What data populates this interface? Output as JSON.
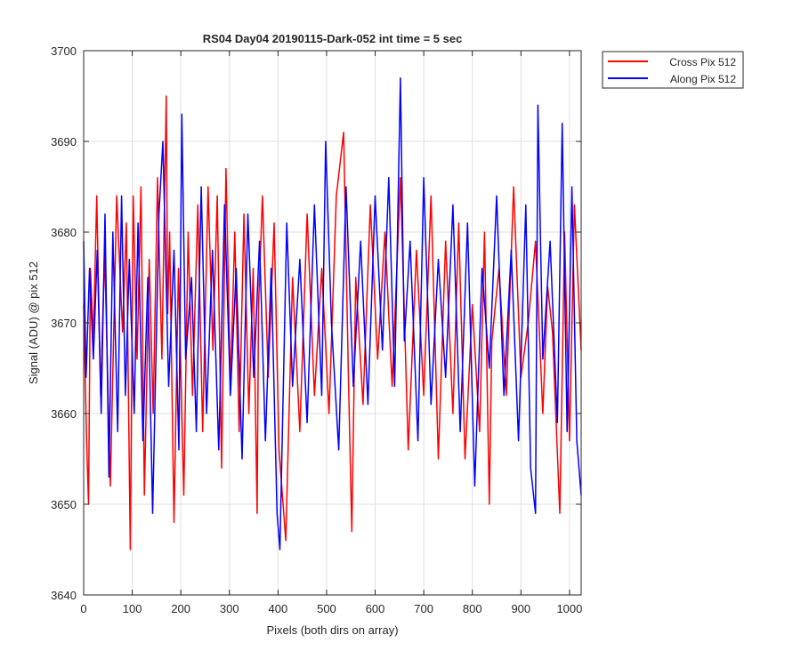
{
  "chart_data": {
    "type": "line",
    "title": "RS04 Day04 20190115-Dark-052 int time = 5 sec",
    "xlabel": "Pixels (both dirs on array)",
    "ylabel": "Signal (ADU) @ pix 512",
    "xlim": [
      0,
      1024
    ],
    "ylim": [
      3640,
      3700
    ],
    "xticks": [
      0,
      100,
      200,
      300,
      400,
      500,
      600,
      700,
      800,
      900,
      1000
    ],
    "yticks": [
      3640,
      3650,
      3660,
      3670,
      3680,
      3690,
      3700
    ],
    "grid": true,
    "legend_position": "outside-top-right",
    "series": [
      {
        "name": "Cross Pix 512",
        "color": "#ff0000",
        "x": [
          0,
          6,
          10,
          14,
          20,
          27,
          35,
          43,
          55,
          68,
          80,
          88,
          96,
          102,
          110,
          118,
          125,
          135,
          143,
          152,
          161,
          170,
          173,
          177,
          186,
          195,
          206,
          215,
          224,
          235,
          245,
          256,
          266,
          275,
          284,
          293,
          302,
          311,
          320,
          330,
          340,
          349,
          357,
          360,
          368,
          380,
          392,
          402,
          416,
          430,
          445,
          460,
          475,
          490,
          505,
          520,
          535,
          545,
          552,
          560,
          575,
          590,
          605,
          620,
          635,
          652,
          668,
          685,
          700,
          715,
          730,
          745,
          760,
          772,
          785,
          800,
          815,
          825,
          835,
          840,
          855,
          870,
          885,
          900,
          915,
          930,
          945,
          955,
          965,
          980,
          990,
          1000,
          1010,
          1024
        ],
        "values": [
          3672,
          3657,
          3650,
          3676,
          3668,
          3684,
          3662,
          3678,
          3652,
          3684,
          3669,
          3681,
          3645,
          3684,
          3666,
          3685,
          3651,
          3677,
          3660,
          3686,
          3666,
          3695,
          3671,
          3680,
          3648,
          3676,
          3651,
          3680,
          3662,
          3683,
          3658,
          3685,
          3667,
          3684,
          3654,
          3687,
          3663,
          3680,
          3658,
          3682,
          3660,
          3676,
          3649,
          3672,
          3684,
          3664,
          3681,
          3656,
          3646,
          3675,
          3658,
          3682,
          3662,
          3676,
          3660,
          3684,
          3691,
          3664,
          3647,
          3675,
          3661,
          3683,
          3666,
          3680,
          3663,
          3686,
          3656,
          3678,
          3662,
          3684,
          3655,
          3679,
          3660,
          3681,
          3655,
          3672,
          3658,
          3680,
          3650,
          3668,
          3676,
          3662,
          3685,
          3664,
          3670,
          3679,
          3660,
          3674,
          3669,
          3649,
          3680,
          3657,
          3683,
          3667
        ]
      },
      {
        "name": "Along Pix 512",
        "color": "#0000ff",
        "x": [
          0,
          5,
          12,
          20,
          28,
          36,
          44,
          52,
          60,
          70,
          78,
          86,
          94,
          104,
          112,
          122,
          132,
          142,
          155,
          163,
          175,
          186,
          196,
          202,
          210,
          222,
          232,
          242,
          253,
          265,
          278,
          290,
          302,
          314,
          326,
          338,
          350,
          362,
          374,
          386,
          398,
          404,
          418,
          430,
          445,
          460,
          475,
          490,
          498,
          510,
          525,
          540,
          555,
          570,
          585,
          600,
          615,
          628,
          640,
          652,
          660,
          672,
          688,
          700,
          715,
          730,
          745,
          760,
          775,
          790,
          805,
          820,
          835,
          850,
          865,
          880,
          895,
          910,
          920,
          930,
          935,
          945,
          960,
          975,
          985,
          995,
          1005,
          1015,
          1024
        ],
        "values": [
          3679,
          3664,
          3676,
          3666,
          3678,
          3660,
          3682,
          3653,
          3680,
          3658,
          3684,
          3662,
          3677,
          3660,
          3681,
          3657,
          3675,
          3649,
          3682,
          3690,
          3663,
          3678,
          3656,
          3693,
          3666,
          3675,
          3658,
          3685,
          3660,
          3678,
          3656,
          3683,
          3662,
          3676,
          3655,
          3682,
          3664,
          3679,
          3657,
          3676,
          3649,
          3645,
          3681,
          3663,
          3677,
          3659,
          3683,
          3662,
          3690,
          3670,
          3656,
          3685,
          3663,
          3679,
          3661,
          3684,
          3667,
          3686,
          3663,
          3697,
          3668,
          3679,
          3657,
          3686,
          3661,
          3677,
          3664,
          3683,
          3658,
          3681,
          3652,
          3676,
          3665,
          3684,
          3662,
          3678,
          3657,
          3683,
          3654,
          3649,
          3694,
          3666,
          3679,
          3659,
          3692,
          3658,
          3685,
          3657,
          3651
        ]
      }
    ]
  }
}
